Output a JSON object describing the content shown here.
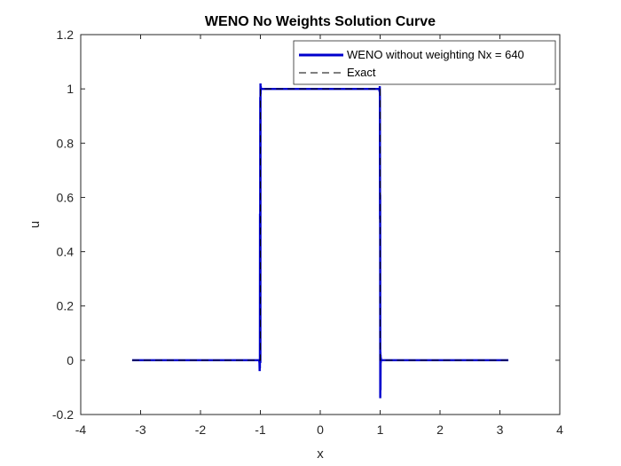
{
  "chart_data": {
    "type": "line",
    "title": "WENO No Weights Solution Curve",
    "xlabel": "x",
    "ylabel": "u",
    "xlim": [
      -4,
      4
    ],
    "ylim": [
      -0.2,
      1.2
    ],
    "xticks": [
      -4,
      -3,
      -2,
      -1,
      0,
      1,
      2,
      3,
      4
    ],
    "xtick_labels": [
      "-4",
      "-3",
      "-2",
      "-1",
      "0",
      "1",
      "2",
      "3",
      "4"
    ],
    "yticks": [
      -0.2,
      0,
      0.2,
      0.4,
      0.6,
      0.8,
      1,
      1.2
    ],
    "ytick_labels": [
      "-0.2",
      "0",
      "0.2",
      "0.4",
      "0.6",
      "0.8",
      "1",
      "1.2"
    ],
    "grid": false,
    "legend_position": "top-right",
    "series": [
      {
        "name": "WENO without weighting Nx = 640",
        "color": "#0000CD",
        "style": "solid",
        "x": [
          -3.1416,
          -1.02,
          -1.015,
          -1.012,
          -1.01,
          -1.008,
          -1.006,
          -1.004,
          -1.002,
          -1.0,
          -0.998,
          -0.996,
          -0.994,
          -0.99,
          -0.985,
          -0.98,
          0.98,
          0.985,
          0.99,
          0.994,
          0.996,
          0.998,
          1.0,
          1.002,
          1.004,
          1.006,
          1.008,
          1.01,
          1.012,
          1.015,
          1.02,
          3.1416
        ],
        "y": [
          0,
          0,
          -0.01,
          -0.04,
          0.0,
          -0.03,
          0.54,
          0.0,
          0.97,
          -0.01,
          1.02,
          0.98,
          1.01,
          1.0,
          1.0,
          1.0,
          1.0,
          1.0,
          0.99,
          1.01,
          0.97,
          0.52,
          0.61,
          -0.14,
          0.03,
          -0.11,
          0.02,
          -0.01,
          0.01,
          0.0,
          0.0,
          0.0
        ]
      },
      {
        "name": "Exact",
        "color": "#000000",
        "style": "dashed",
        "x": [
          -3.1416,
          -1.0,
          -1.0,
          1.0,
          1.0,
          3.1416
        ],
        "y": [
          0,
          0,
          1,
          1,
          0,
          0
        ]
      }
    ]
  }
}
